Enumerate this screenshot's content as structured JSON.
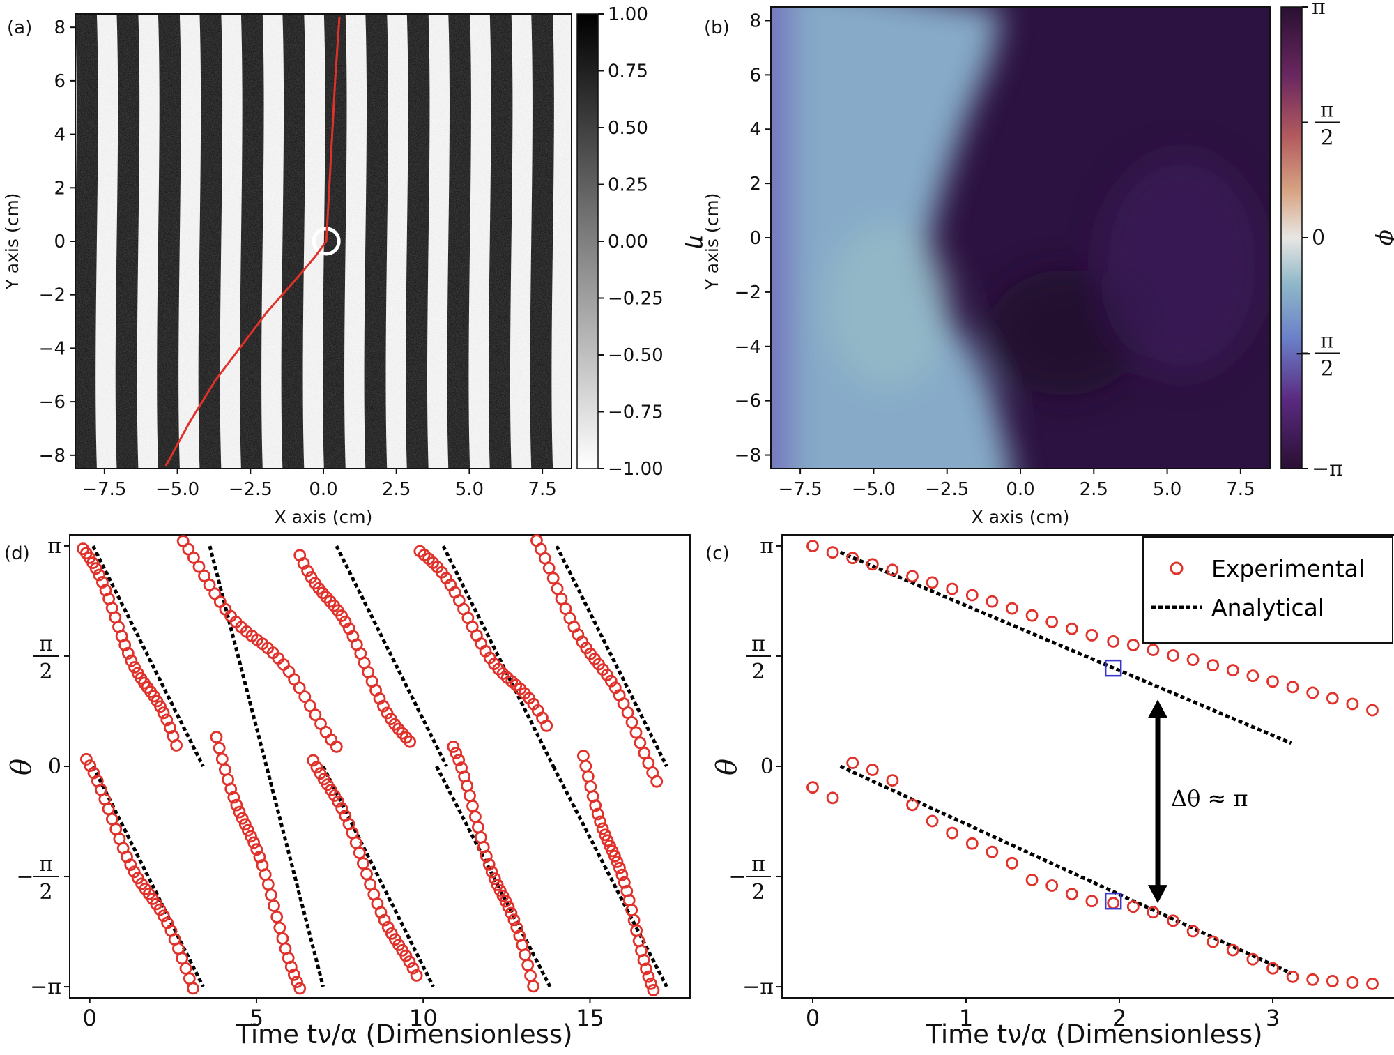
{
  "chart_data": [
    {
      "id": "a",
      "panel_label": "(a)",
      "type": "heatmap",
      "description_visible": "stripe pattern",
      "xlabel": "X axis (cm)",
      "ylabel": "Y axis (cm)",
      "xlim": [
        -8.5,
        8.5
      ],
      "ylim": [
        -8.5,
        8.5
      ],
      "xticks": [
        -7.5,
        -5.0,
        -2.5,
        0.0,
        2.5,
        5.0,
        7.5
      ],
      "xtick_labels": [
        "−7.5",
        "−5.0",
        "−2.5",
        "0.0",
        "2.5",
        "5.0",
        "7.5"
      ],
      "yticks": [
        -8,
        -6,
        -4,
        -2,
        0,
        2,
        4,
        6,
        8
      ],
      "ytick_labels": [
        "−8",
        "−6",
        "−4",
        "−2",
        "0",
        "2",
        "4",
        "6",
        "8"
      ],
      "colorbar": {
        "label": "η",
        "range": [
          -1.0,
          1.0
        ],
        "ticks": [
          1.0,
          0.75,
          0.5,
          0.25,
          0.0,
          -0.25,
          -0.5,
          -0.75,
          -1.0
        ],
        "tick_labels": [
          "1.00",
          "0.75",
          "0.50",
          "0.25",
          "0.00",
          "−0.25",
          "−0.50",
          "−0.75",
          "−1.00"
        ],
        "colors": [
          "#ffffff",
          "#000000"
        ]
      },
      "stripe_wavelength_cm": 1.42,
      "curve": {
        "color": "#e0312a",
        "x": [
          -5.4,
          -4.6,
          -3.7,
          -2.8,
          -1.9,
          -1.0,
          -0.3,
          0.1,
          0.25,
          0.4,
          0.55
        ],
        "y": [
          -8.4,
          -6.8,
          -5.2,
          -3.9,
          -2.6,
          -1.5,
          -0.6,
          0.0,
          3.0,
          6.0,
          8.4
        ]
      }
    },
    {
      "id": "b",
      "panel_label": "(b)",
      "type": "heatmap",
      "xlabel": "X axis (cm)",
      "ylabel": "Y axis (cm)",
      "xlim": [
        -8.5,
        8.5
      ],
      "ylim": [
        -8.5,
        8.5
      ],
      "xticks": [
        -7.5,
        -5.0,
        -2.5,
        0.0,
        2.5,
        5.0,
        7.5
      ],
      "xtick_labels": [
        "−7.5",
        "−5.0",
        "−2.5",
        "0.0",
        "2.5",
        "5.0",
        "7.5"
      ],
      "yticks": [
        -8,
        -6,
        -4,
        -2,
        0,
        2,
        4,
        6,
        8
      ],
      "ytick_labels": [
        "−8",
        "−6",
        "−4",
        "−2",
        "0",
        "2",
        "4",
        "6",
        "8"
      ],
      "colorbar": {
        "label": "ϕ",
        "range": [
          "-π",
          "π"
        ],
        "tick_labels": [
          "π",
          "π/2",
          "0",
          "−π/2",
          "−π"
        ],
        "colors": [
          "#2a0f33",
          "#5a2870",
          "#6a5cc0",
          "#8fb2d3",
          "#e8e6e3",
          "#d8a483",
          "#a64f52",
          "#5c1e58",
          "#2a0f33"
        ]
      },
      "regions": {
        "left_color": "#86aac8",
        "right_color": "#2c1240",
        "boundary_x": [
          -0.6,
          -1.0,
          -1.8,
          -2.6,
          -3.1,
          -3.2,
          -2.9,
          -2.4,
          -1.7,
          -1.0,
          -0.3
        ],
        "boundary_y": [
          8.4,
          6.5,
          4.5,
          2.0,
          0.0,
          -1.0,
          -2.0,
          -3.0,
          -4.0,
          -5.5,
          -8.4
        ]
      }
    },
    {
      "id": "d",
      "panel_label": "(d)",
      "type": "scatter",
      "xlabel": "Time tν/α (Dimensionless)",
      "ylabel": "θ",
      "xlim": [
        -0.6,
        18.0
      ],
      "ylim": [
        -3.3,
        3.3
      ],
      "xticks": [
        0,
        5,
        10,
        15
      ],
      "xtick_labels": [
        "0",
        "5",
        "10",
        "15"
      ],
      "yticks": [
        "π",
        "π/2",
        "0",
        "−π/2",
        "−π"
      ],
      "marker_color": "#e0312a",
      "line_color": "#000000",
      "segments": [
        {
          "t0": -0.2,
          "t1": 2.6,
          "theta0": 3.1,
          "theta1": 0.25
        },
        {
          "t0": -0.1,
          "t1": 3.1,
          "theta0": 0.0,
          "theta1": -3.1
        },
        {
          "t0": 2.8,
          "t1": 7.4,
          "theta0": 3.1,
          "theta1": 0.4
        },
        {
          "t0": 3.8,
          "t1": 6.3,
          "theta0": 0.4,
          "theta1": -3.1
        },
        {
          "t0": 6.3,
          "t1": 9.6,
          "theta0": 3.1,
          "theta1": 0.3
        },
        {
          "t0": 6.7,
          "t1": 9.8,
          "theta0": 0.2,
          "theta1": -3.1
        },
        {
          "t0": 9.9,
          "t1": 13.7,
          "theta0": 3.1,
          "theta1": 0.5
        },
        {
          "t0": 10.9,
          "t1": 13.3,
          "theta0": 0.2,
          "theta1": -3.1
        },
        {
          "t0": 13.4,
          "t1": 17.0,
          "theta0": 3.1,
          "theta1": -0.1
        },
        {
          "t0": 14.8,
          "t1": 16.9,
          "theta0": 0.1,
          "theta1": -3.1
        }
      ],
      "analytical_lines": [
        {
          "x": [
            0.1,
            3.4
          ],
          "y": [
            3.14,
            0.0
          ]
        },
        {
          "x": [
            0.1,
            3.4
          ],
          "y": [
            0.0,
            -3.14
          ]
        },
        {
          "x": [
            3.6,
            7.0
          ],
          "y": [
            3.14,
            -3.14
          ]
        },
        {
          "x": [
            7.4,
            10.7
          ],
          "y": [
            3.14,
            0.0
          ]
        },
        {
          "x": [
            7.0,
            10.3
          ],
          "y": [
            0.0,
            -3.14
          ]
        },
        {
          "x": [
            10.6,
            13.9
          ],
          "y": [
            3.14,
            0.0
          ]
        },
        {
          "x": [
            10.4,
            13.8
          ],
          "y": [
            0.0,
            -3.14
          ]
        },
        {
          "x": [
            14.0,
            17.3
          ],
          "y": [
            3.14,
            0.0
          ]
        },
        {
          "x": [
            13.9,
            17.3
          ],
          "y": [
            0.0,
            -3.14
          ]
        }
      ]
    },
    {
      "id": "c",
      "panel_label": "(c)",
      "type": "scatter",
      "xlabel": "Time tν/α (Dimensionless)",
      "ylabel": "θ",
      "xlim": [
        -0.2,
        3.8
      ],
      "ylim": [
        -3.3,
        3.3
      ],
      "xticks": [
        0,
        1,
        2,
        3
      ],
      "xtick_labels": [
        "0",
        "1",
        "2",
        "3"
      ],
      "yticks": [
        "π",
        "π/2",
        "0",
        "−π/2",
        "−π"
      ],
      "legend": {
        "position": "top-right",
        "entries": [
          "Experimental",
          "Analytical"
        ]
      },
      "annotation": "Δθ ≈ π",
      "series": [
        {
          "name": "Experimental",
          "color": "#e0312a",
          "upper_x": [
            0.0,
            0.13,
            0.26,
            0.39,
            0.52,
            0.65,
            0.78,
            0.91,
            1.04,
            1.17,
            1.3,
            1.43,
            1.56,
            1.69,
            1.82,
            1.96,
            2.09,
            2.22,
            2.35,
            2.48,
            2.61,
            2.74,
            2.87,
            3.0,
            3.13,
            3.26,
            3.39,
            3.52,
            3.65
          ],
          "upper_y": [
            3.14,
            3.05,
            2.97,
            2.88,
            2.8,
            2.71,
            2.62,
            2.53,
            2.44,
            2.35,
            2.25,
            2.15,
            2.06,
            1.96,
            1.87,
            1.78,
            1.73,
            1.66,
            1.58,
            1.52,
            1.44,
            1.37,
            1.29,
            1.21,
            1.13,
            1.05,
            0.97,
            0.89,
            0.8
          ],
          "lower_x": [
            0.0,
            0.13,
            0.26,
            0.39,
            0.52,
            0.65,
            0.78,
            0.91,
            1.04,
            1.17,
            1.3,
            1.43,
            1.56,
            1.69,
            1.82,
            1.96,
            2.09,
            2.22,
            2.35,
            2.48,
            2.61,
            2.74,
            2.87,
            3.0,
            3.13,
            3.26,
            3.39,
            3.52,
            3.65
          ],
          "lower_y": [
            -0.3,
            -0.45,
            0.05,
            -0.05,
            -0.2,
            -0.55,
            -0.78,
            -0.95,
            -1.1,
            -1.22,
            -1.38,
            -1.62,
            -1.7,
            -1.82,
            -1.92,
            -1.95,
            -2.0,
            -2.08,
            -2.2,
            -2.35,
            -2.5,
            -2.62,
            -2.75,
            -2.88,
            -3.0,
            -3.04,
            -3.06,
            -3.08,
            -3.1
          ]
        },
        {
          "name": "Analytical",
          "color": "#000000",
          "upper_x": [
            0.18,
            3.12
          ],
          "upper_y": [
            3.05,
            0.33
          ],
          "lower_x": [
            0.18,
            3.12
          ],
          "lower_y": [
            0.0,
            -2.95
          ]
        }
      ],
      "highlight_squares": [
        {
          "x": 1.96,
          "y": 1.4,
          "color": "#3b38c9"
        },
        {
          "x": 1.96,
          "y": -1.92,
          "color": "#3b38c9"
        }
      ],
      "arrow": {
        "x": 2.25,
        "y0": 0.95,
        "y1": -1.95
      }
    }
  ]
}
